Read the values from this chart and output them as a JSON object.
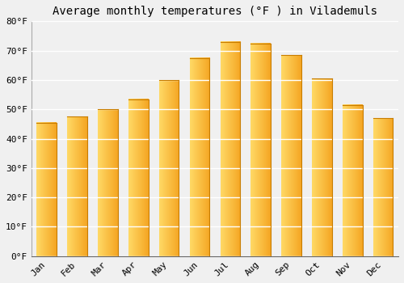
{
  "title": "Average monthly temperatures (°F ) in Vilademuls",
  "months": [
    "Jan",
    "Feb",
    "Mar",
    "Apr",
    "May",
    "Jun",
    "Jul",
    "Aug",
    "Sep",
    "Oct",
    "Nov",
    "Dec"
  ],
  "values": [
    45.5,
    47.5,
    50.0,
    53.5,
    60.0,
    67.5,
    73.0,
    72.5,
    68.5,
    60.5,
    51.5,
    47.0
  ],
  "bar_color_left": "#FFD966",
  "bar_color_right": "#F5A623",
  "bar_edge_color": "#C87D00",
  "ylim": [
    0,
    80
  ],
  "yticks": [
    0,
    10,
    20,
    30,
    40,
    50,
    60,
    70,
    80
  ],
  "background_color": "#f0f0f0",
  "grid_color": "#ffffff",
  "title_fontsize": 10,
  "tick_fontsize": 8,
  "font_family": "monospace"
}
